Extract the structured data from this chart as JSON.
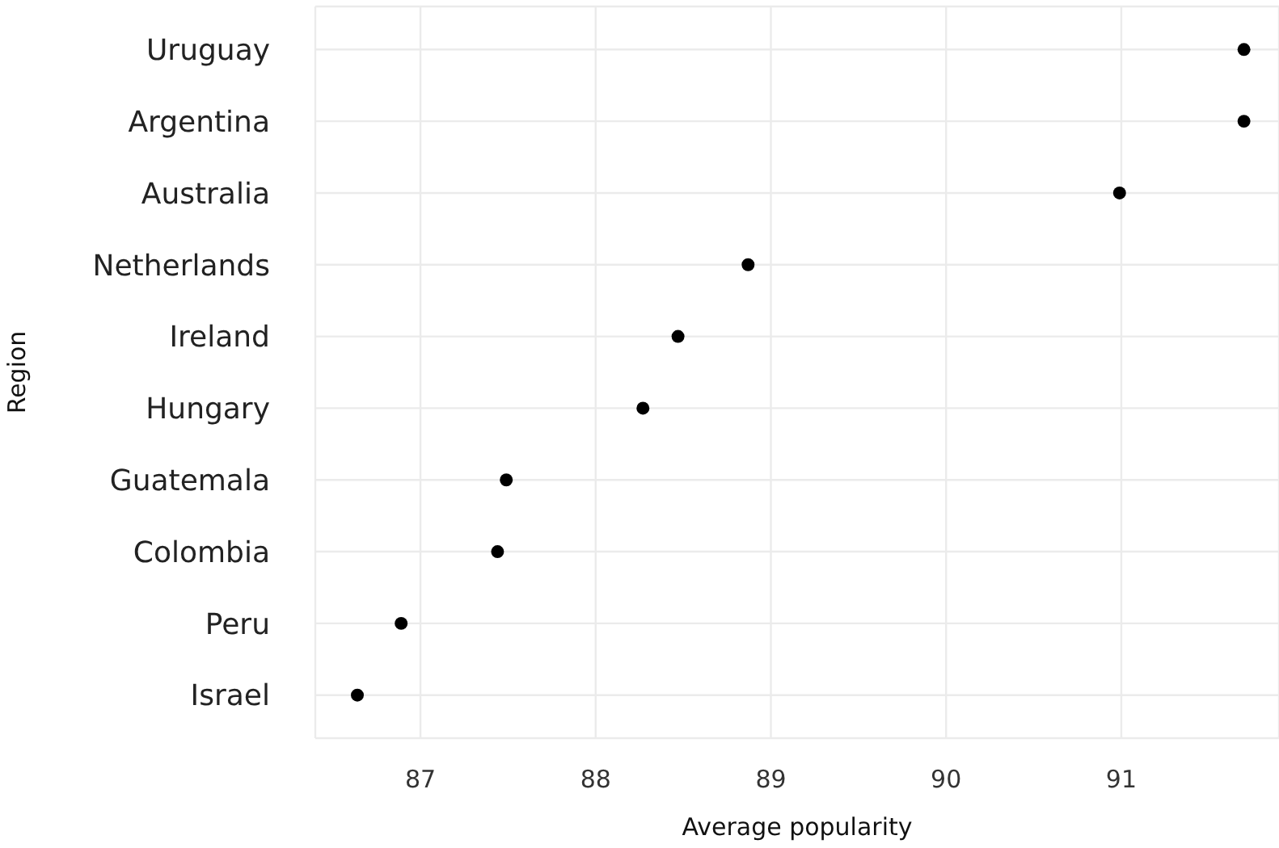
{
  "chart_data": {
    "type": "scatter",
    "orientation": "horizontal",
    "xlabel": "Average popularity",
    "ylabel": "Region",
    "categories": [
      "Uruguay",
      "Argentina",
      "Australia",
      "Netherlands",
      "Ireland",
      "Hungary",
      "Guatemala",
      "Colombia",
      "Peru",
      "Israel"
    ],
    "values": [
      91.7,
      91.7,
      90.99,
      88.87,
      88.47,
      88.27,
      87.49,
      87.44,
      86.89,
      86.64
    ],
    "color": "#000000",
    "marker": "circle",
    "grid": true,
    "xlim": [
      86.4,
      91.9
    ],
    "xticks": [
      87,
      88,
      89,
      90,
      91
    ]
  }
}
